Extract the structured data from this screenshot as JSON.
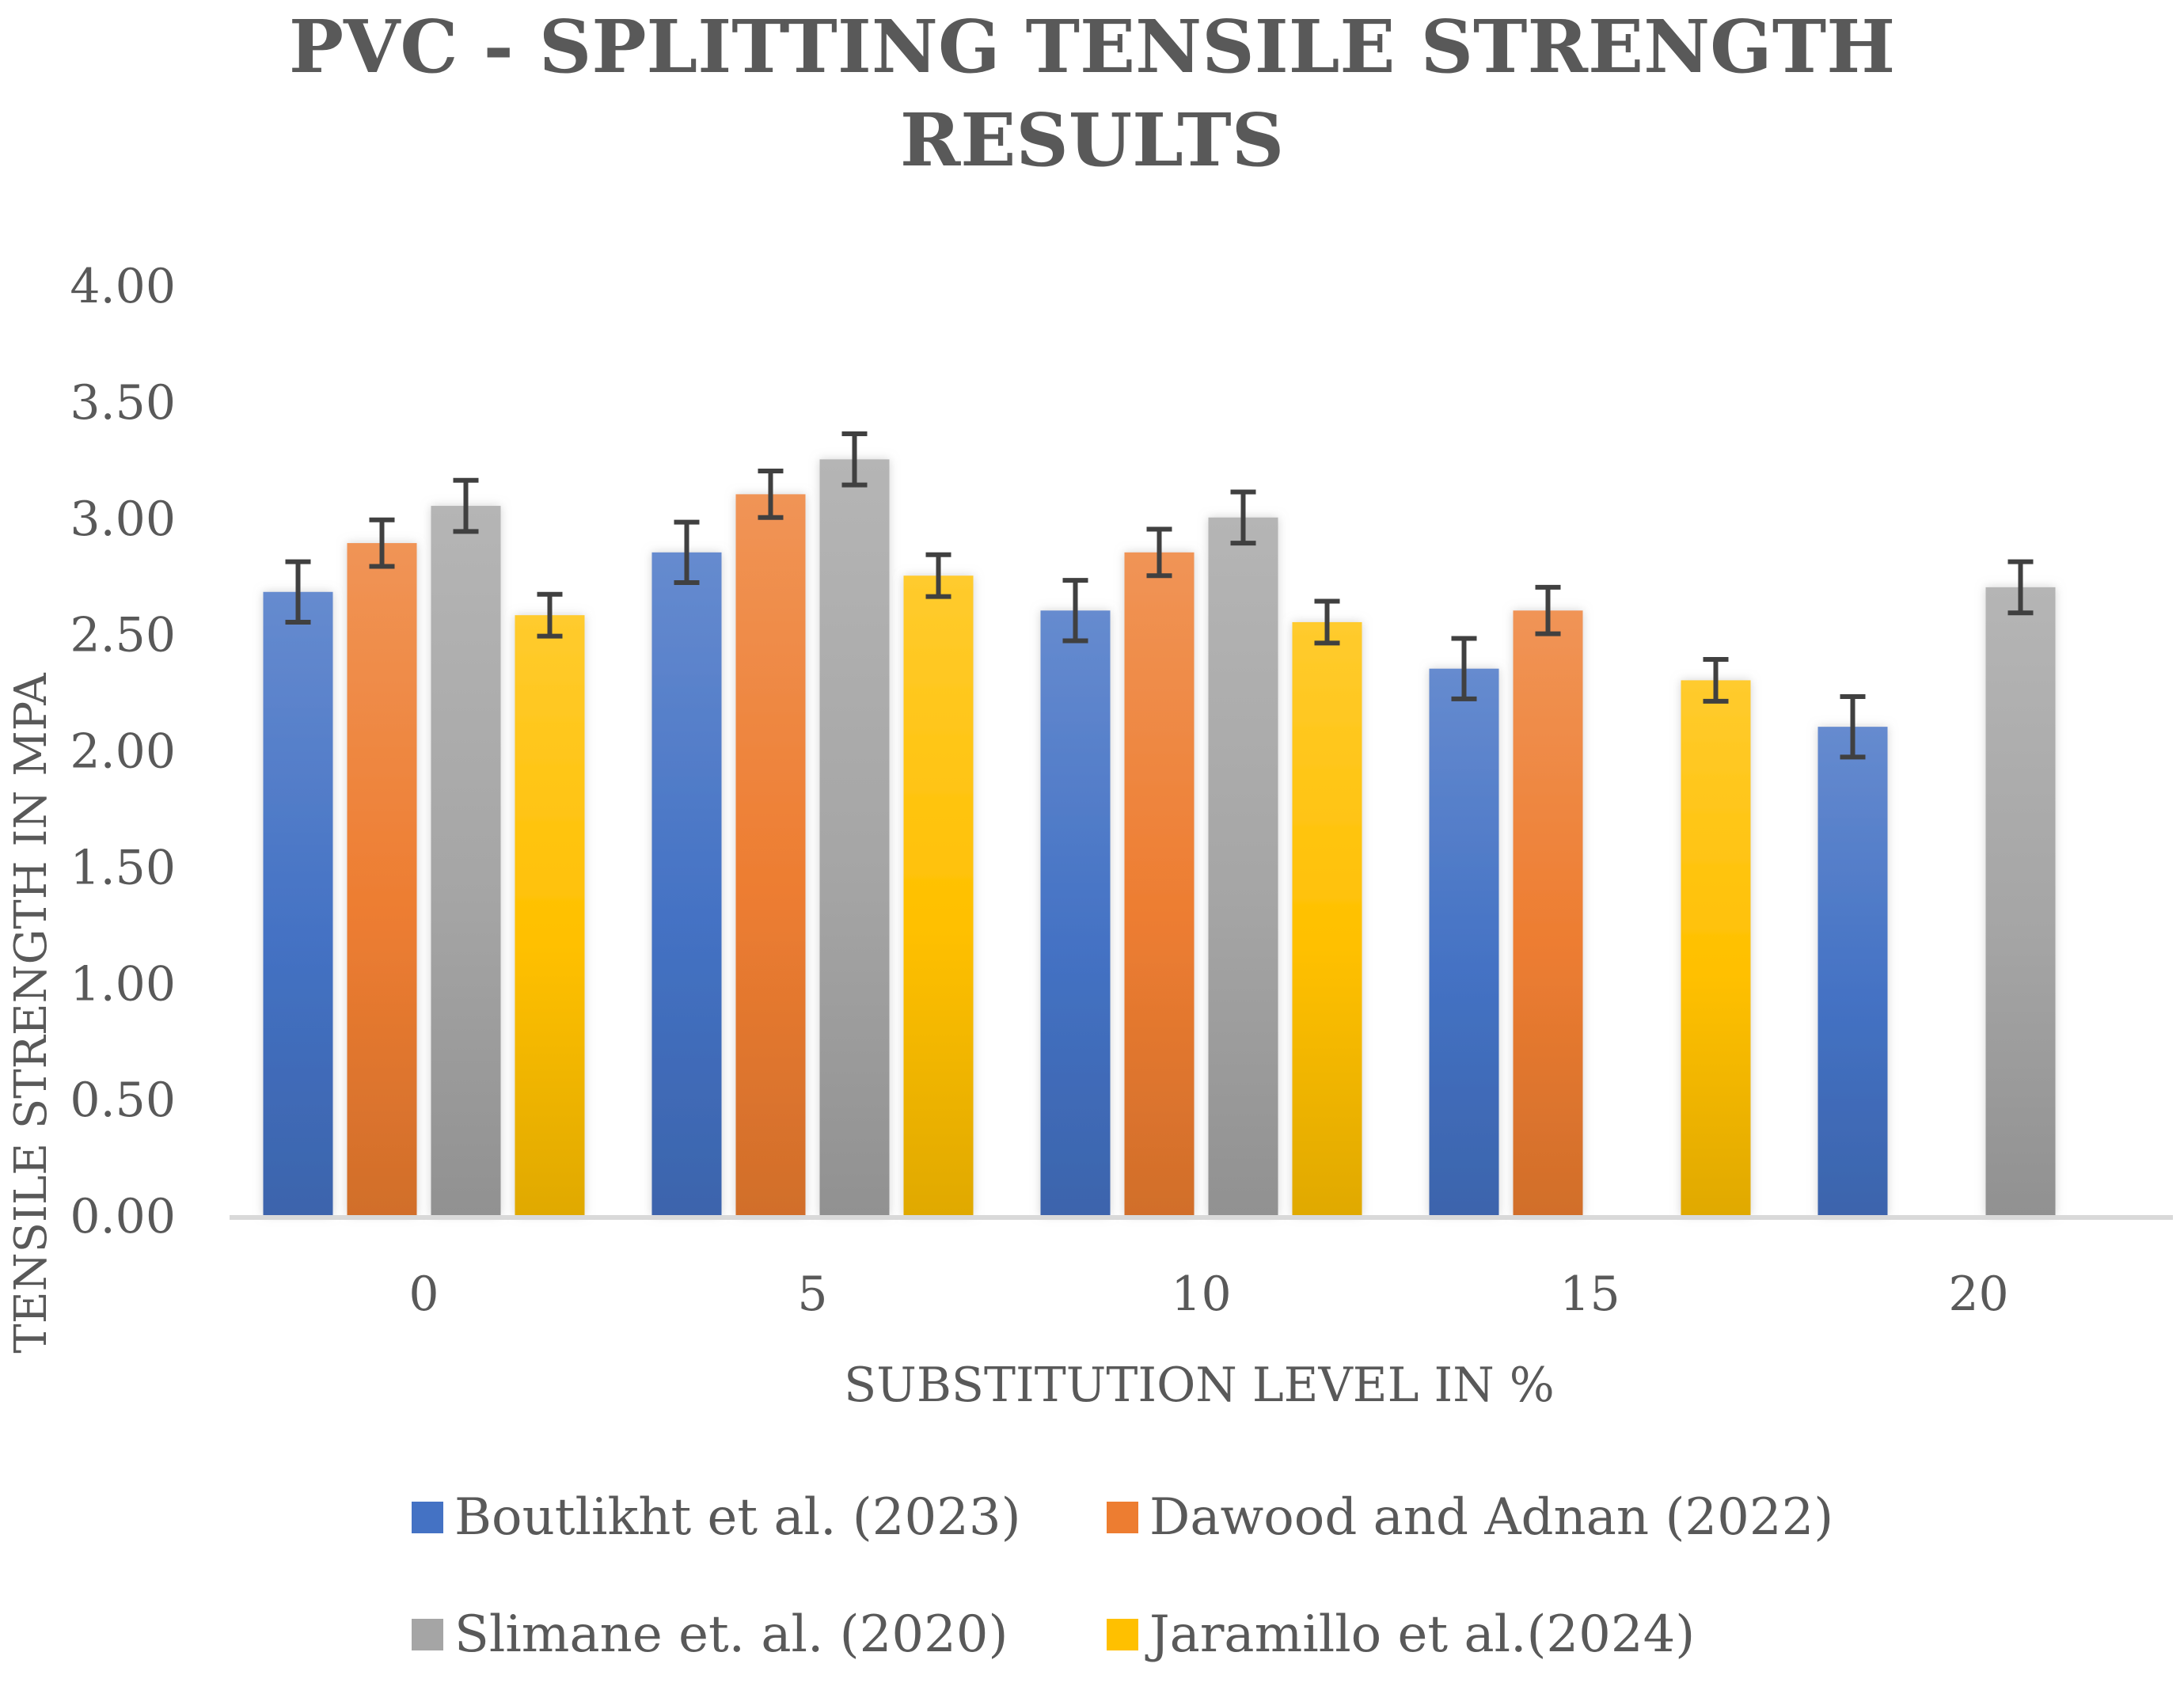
{
  "chart_data": {
    "type": "bar",
    "title_line1": "PVC - SPLITTING TENSILE STRENGTH",
    "title_line2": "RESULTS",
    "xlabel": "SUBSTITUTION LEVEL IN %",
    "ylabel": "TENSILE STRENGTH IN MPA",
    "categories": [
      "0",
      "5",
      "10",
      "15",
      "20"
    ],
    "ylim": [
      0,
      4
    ],
    "yticks": [
      "0.00",
      "0.50",
      "1.00",
      "1.50",
      "2.00",
      "2.50",
      "3.00",
      "3.50",
      "4.00"
    ],
    "grid": false,
    "legend_position": "bottom",
    "series": [
      {
        "name": "Boutlikht et al. (2023)",
        "color": "#4472C4",
        "values": [
          2.68,
          2.85,
          2.6,
          2.35,
          2.1
        ],
        "errors": [
          0.13,
          0.13,
          0.13,
          0.13,
          0.13
        ]
      },
      {
        "name": "Dawood and Adnan (2022)",
        "color": "#ED7D31",
        "values": [
          2.89,
          3.1,
          2.85,
          2.6,
          null
        ],
        "errors": [
          0.1,
          0.1,
          0.1,
          0.1,
          null
        ]
      },
      {
        "name": "Slimane et. al. (2020)",
        "color": "#A5A5A5",
        "values": [
          3.05,
          3.25,
          3.0,
          null,
          2.7
        ],
        "errors": [
          0.11,
          0.11,
          0.11,
          null,
          0.11
        ]
      },
      {
        "name": "Jaramillo et al.(2024)",
        "color": "#FFC000",
        "values": [
          2.58,
          2.75,
          2.55,
          2.3,
          null
        ],
        "errors": [
          0.09,
          0.09,
          0.09,
          0.09,
          null
        ]
      }
    ]
  }
}
